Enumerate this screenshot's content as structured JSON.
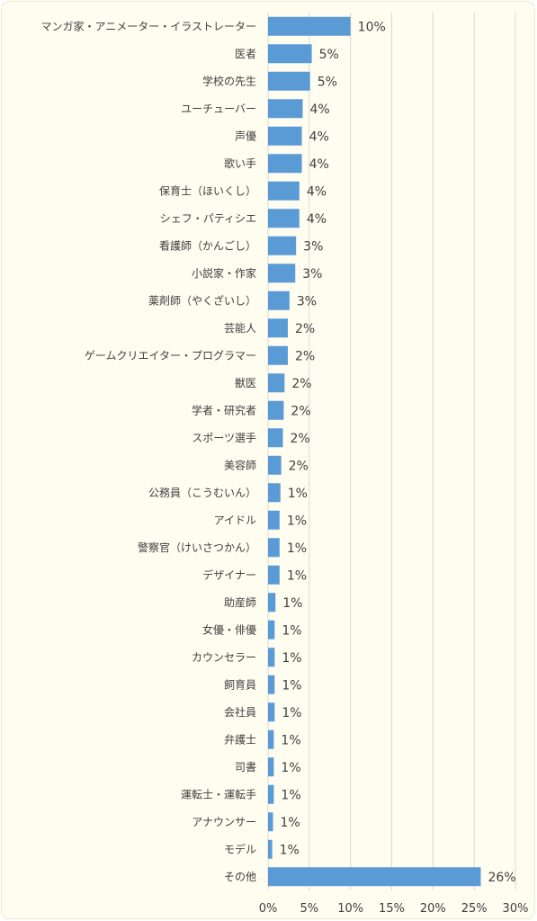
{
  "chart_data": {
    "type": "bar",
    "orientation": "horizontal",
    "categories": [
      "マンガ家・アニメーター・イラストレーター",
      "医者",
      "学校の先生",
      "ユーチューバー",
      "声優",
      "歌い手",
      "保育士（ほいくし）",
      "シェフ・パティシエ",
      "看護師（かんごし）",
      "小説家・作家",
      "薬剤師（やくざいし）",
      "芸能人",
      "ゲームクリエイター・プログラマー",
      "獣医",
      "学者・研究者",
      "スポーツ選手",
      "美容師",
      "公務員（こうむいん）",
      "アイドル",
      "警察官（けいさつかん）",
      "デザイナー",
      "助産師",
      "女優・俳優",
      "カウンセラー",
      "飼育員",
      "会社員",
      "弁護士",
      "司書",
      "運転士・運転手",
      "アナウンサー",
      "モデル",
      "その他"
    ],
    "values": [
      10,
      5.3,
      5.1,
      4.2,
      4.1,
      4.1,
      3.8,
      3.8,
      3.4,
      3.3,
      2.6,
      2.4,
      2.4,
      2.0,
      1.9,
      1.8,
      1.6,
      1.5,
      1.4,
      1.4,
      1.4,
      0.9,
      0.8,
      0.8,
      0.8,
      0.8,
      0.7,
      0.7,
      0.7,
      0.6,
      0.5,
      25.8
    ],
    "data_labels": [
      "10%",
      "5%",
      "5%",
      "4%",
      "4%",
      "4%",
      "4%",
      "4%",
      "3%",
      "3%",
      "3%",
      "2%",
      "2%",
      "2%",
      "2%",
      "2%",
      "2%",
      "1%",
      "1%",
      "1%",
      "1%",
      "1%",
      "1%",
      "1%",
      "1%",
      "1%",
      "1%",
      "1%",
      "1%",
      "1%",
      "1%",
      "26%"
    ],
    "x_ticks": [
      0,
      5,
      10,
      15,
      20,
      25,
      30
    ],
    "x_tick_labels": [
      "0%",
      "5%",
      "10%",
      "15%",
      "20%",
      "25%",
      "30%"
    ],
    "xlim": [
      0,
      30
    ],
    "grid": "vertical",
    "bar_color": "#5b9bd5",
    "grid_color": "#d9d9d9",
    "background_color": "#fffdf0",
    "text_color": "#404040"
  }
}
